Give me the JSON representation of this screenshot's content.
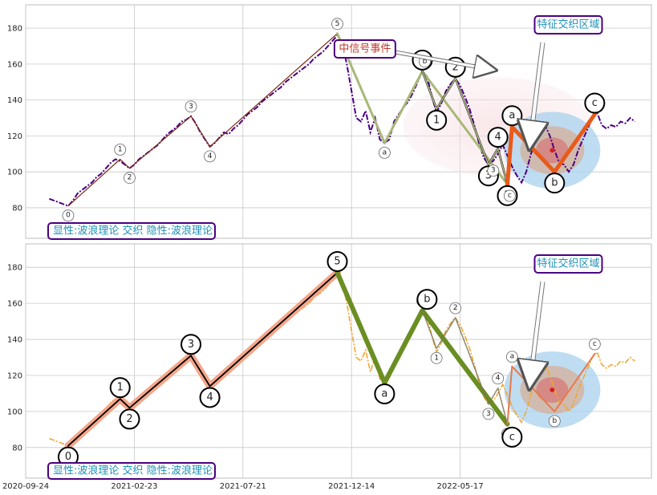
{
  "chart_data": {
    "type": "line",
    "x_dates": [
      "2020-09-24",
      "2021-02-23",
      "2021-07-21",
      "2021-12-14",
      "2022-05-17"
    ],
    "y_ticks": [
      80,
      100,
      120,
      140,
      160,
      180
    ],
    "ylim": [
      63,
      193
    ],
    "panels": [
      {
        "price_color": "#4b0082",
        "price_style": "dashdot",
        "legend_text": "显性:波浪理论 交织 隐性:波浪理论",
        "price": [
          [
            0,
            85
          ],
          [
            2,
            84
          ],
          [
            4,
            83
          ],
          [
            6,
            82
          ],
          [
            8,
            81
          ],
          [
            10,
            84
          ],
          [
            12,
            88
          ],
          [
            14,
            90
          ],
          [
            16,
            92
          ],
          [
            18,
            94
          ],
          [
            20,
            97
          ],
          [
            22,
            99
          ],
          [
            24,
            102
          ],
          [
            26,
            105
          ],
          [
            28,
            107
          ],
          [
            30,
            106
          ],
          [
            32,
            104
          ],
          [
            34,
            102
          ],
          [
            36,
            104
          ],
          [
            38,
            107
          ],
          [
            40,
            109
          ],
          [
            42,
            111
          ],
          [
            44,
            113
          ],
          [
            46,
            115
          ],
          [
            48,
            118
          ],
          [
            50,
            121
          ],
          [
            52,
            123
          ],
          [
            54,
            125
          ],
          [
            56,
            128
          ],
          [
            58,
            129
          ],
          [
            60,
            131
          ],
          [
            62,
            127
          ],
          [
            64,
            122
          ],
          [
            66,
            118
          ],
          [
            68,
            114
          ],
          [
            70,
            116
          ],
          [
            72,
            119
          ],
          [
            74,
            122
          ],
          [
            76,
            121
          ],
          [
            78,
            124
          ],
          [
            80,
            126
          ],
          [
            82,
            129
          ],
          [
            84,
            132
          ],
          [
            86,
            134
          ],
          [
            88,
            136
          ],
          [
            90,
            139
          ],
          [
            92,
            141
          ],
          [
            94,
            143
          ],
          [
            96,
            145
          ],
          [
            98,
            147
          ],
          [
            100,
            150
          ],
          [
            102,
            152
          ],
          [
            104,
            154
          ],
          [
            106,
            156
          ],
          [
            108,
            158
          ],
          [
            110,
            160
          ],
          [
            112,
            163
          ],
          [
            114,
            165
          ],
          [
            116,
            167
          ],
          [
            118,
            170
          ],
          [
            120,
            173
          ],
          [
            122,
            176
          ],
          [
            124,
            172
          ],
          [
            126,
            160
          ],
          [
            128,
            145
          ],
          [
            130,
            130
          ],
          [
            132,
            128
          ],
          [
            134,
            134
          ],
          [
            136,
            122
          ],
          [
            138,
            130
          ],
          [
            140,
            118
          ],
          [
            142,
            116
          ],
          [
            144,
            118
          ],
          [
            146,
            128
          ],
          [
            148,
            132
          ],
          [
            150,
            136
          ],
          [
            152,
            139
          ],
          [
            154,
            144
          ],
          [
            156,
            150
          ],
          [
            158,
            156
          ],
          [
            160,
            153
          ],
          [
            162,
            142
          ],
          [
            164,
            133
          ],
          [
            166,
            138
          ],
          [
            168,
            145
          ],
          [
            170,
            149
          ],
          [
            172,
            152
          ],
          [
            174,
            148
          ],
          [
            176,
            142
          ],
          [
            178,
            135
          ],
          [
            180,
            126
          ],
          [
            182,
            116
          ],
          [
            184,
            108
          ],
          [
            186,
            104
          ],
          [
            188,
            106
          ],
          [
            190,
            110
          ],
          [
            192,
            115
          ],
          [
            194,
            109
          ],
          [
            196,
            103
          ],
          [
            198,
            98
          ],
          [
            200,
            94
          ],
          [
            202,
            100
          ],
          [
            204,
            110
          ],
          [
            206,
            118
          ],
          [
            208,
            122
          ],
          [
            210,
            126
          ],
          [
            212,
            120
          ],
          [
            214,
            112
          ],
          [
            216,
            105
          ],
          [
            218,
            104
          ],
          [
            220,
            100
          ],
          [
            222,
            104
          ],
          [
            224,
            112
          ],
          [
            226,
            118
          ],
          [
            228,
            124
          ],
          [
            230,
            130
          ],
          [
            232,
            133
          ],
          [
            234,
            126
          ],
          [
            236,
            124
          ],
          [
            238,
            126
          ],
          [
            240,
            125
          ],
          [
            242,
            128
          ],
          [
            244,
            127
          ],
          [
            246,
            130
          ],
          [
            248,
            128
          ]
        ],
        "markers": [
          {
            "x": 8,
            "y": 81,
            "label": "0",
            "size": "small",
            "pos": "below"
          },
          {
            "x": 30,
            "y": 107,
            "label": "1",
            "size": "small",
            "pos": "above"
          },
          {
            "x": 34,
            "y": 102,
            "label": "2",
            "size": "small",
            "pos": "below"
          },
          {
            "x": 60,
            "y": 131,
            "label": "3",
            "size": "small",
            "pos": "above"
          },
          {
            "x": 68,
            "y": 114,
            "label": "4",
            "size": "small",
            "pos": "below"
          },
          {
            "x": 122,
            "y": 177,
            "label": "5",
            "size": "small",
            "pos": "above"
          },
          {
            "x": 142,
            "y": 116,
            "label": "a",
            "size": "small",
            "pos": "below"
          },
          {
            "x": 158,
            "y": 156,
            "label": "0",
            "size": "big",
            "pos": "above"
          },
          {
            "x": 159,
            "y": 156,
            "label": "b",
            "size": "small",
            "pos": "above"
          },
          {
            "x": 164,
            "y": 135,
            "label": "1",
            "size": "big",
            "pos": "below"
          },
          {
            "x": 172,
            "y": 152,
            "label": "2",
            "size": "big",
            "pos": "above"
          },
          {
            "x": 186,
            "y": 104,
            "label": "3",
            "size": "big",
            "pos": "below"
          },
          {
            "x": 188,
            "y": 106,
            "label": "3",
            "size": "small",
            "pos": "below"
          },
          {
            "x": 190,
            "y": 113,
            "label": "4",
            "size": "big",
            "pos": "above"
          },
          {
            "x": 194,
            "y": 93,
            "label": "5",
            "size": "big",
            "pos": "below"
          },
          {
            "x": 195,
            "y": 92,
            "label": "c",
            "size": "small",
            "pos": "below"
          },
          {
            "x": 196,
            "y": 125,
            "label": "a",
            "size": "big",
            "pos": "above"
          },
          {
            "x": 214,
            "y": 100,
            "label": "b",
            "size": "big",
            "pos": "below"
          },
          {
            "x": 231,
            "y": 132,
            "label": "c",
            "size": "big",
            "pos": "above"
          }
        ],
        "lines": [
          {
            "pts": [
              [
                8,
                81
              ],
              [
                30,
                107
              ],
              [
                34,
                102
              ],
              [
                60,
                131
              ],
              [
                68,
                114
              ],
              [
                122,
                177
              ]
            ],
            "color": "#7a2a10",
            "width": 1.2
          },
          {
            "pts": [
              [
                122,
                177
              ],
              [
                142,
                116
              ],
              [
                158,
                156
              ],
              [
                194,
                93
              ]
            ],
            "color": "#a8b878",
            "width": 3
          },
          {
            "pts": [
              [
                158,
                156
              ],
              [
                164,
                135
              ],
              [
                172,
                152
              ],
              [
                186,
                104
              ],
              [
                190,
                113
              ],
              [
                194,
                93
              ]
            ],
            "color": "#000000",
            "width": 2.5
          },
          {
            "pts": [
              [
                158,
                156
              ],
              [
                164,
                135
              ],
              [
                172,
                152
              ],
              [
                186,
                104
              ],
              [
                190,
                113
              ],
              [
                194,
                93
              ]
            ],
            "color": "#b8c090",
            "width": 1.5
          },
          {
            "pts": [
              [
                194,
                93
              ],
              [
                196,
                125
              ],
              [
                214,
                100
              ],
              [
                231,
                132
              ]
            ],
            "color": "#e85a1a",
            "width": 5
          }
        ],
        "signal_label": "中信号事件",
        "region_label": "特征交织区域"
      },
      {
        "price_color": "#f0a830",
        "price_style": "dashdot",
        "legend_text": "显性:波浪理论 交织 隐性:波浪理论",
        "markers": [
          {
            "x": 8,
            "y": 81,
            "label": "0",
            "size": "big",
            "pos": "below"
          },
          {
            "x": 30,
            "y": 107,
            "label": "1",
            "size": "big",
            "pos": "above"
          },
          {
            "x": 34,
            "y": 102,
            "label": "2",
            "size": "big",
            "pos": "below"
          },
          {
            "x": 60,
            "y": 131,
            "label": "3",
            "size": "big",
            "pos": "above"
          },
          {
            "x": 68,
            "y": 114,
            "label": "4",
            "size": "big",
            "pos": "below"
          },
          {
            "x": 122,
            "y": 177,
            "label": "5",
            "size": "big",
            "pos": "above"
          },
          {
            "x": 142,
            "y": 116,
            "label": "a",
            "size": "big",
            "pos": "below"
          },
          {
            "x": 158,
            "y": 156,
            "label": "0",
            "size": "small",
            "pos": "above"
          },
          {
            "x": 160,
            "y": 156,
            "label": "b",
            "size": "big",
            "pos": "above"
          },
          {
            "x": 164,
            "y": 135,
            "label": "1",
            "size": "small",
            "pos": "below"
          },
          {
            "x": 172,
            "y": 152,
            "label": "2",
            "size": "small",
            "pos": "above"
          },
          {
            "x": 186,
            "y": 104,
            "label": "3",
            "size": "small",
            "pos": "below"
          },
          {
            "x": 190,
            "y": 113,
            "label": "4",
            "size": "small",
            "pos": "above"
          },
          {
            "x": 194,
            "y": 93,
            "label": "5",
            "size": "small",
            "pos": "below"
          },
          {
            "x": 196,
            "y": 92,
            "label": "c",
            "size": "big",
            "pos": "below"
          },
          {
            "x": 196,
            "y": 125,
            "label": "a",
            "size": "small",
            "pos": "above"
          },
          {
            "x": 214,
            "y": 100,
            "label": "b",
            "size": "small",
            "pos": "below"
          },
          {
            "x": 231,
            "y": 132,
            "label": "c",
            "size": "small",
            "pos": "above"
          }
        ],
        "lines": [
          {
            "pts": [
              [
                8,
                81
              ],
              [
                30,
                107
              ],
              [
                34,
                102
              ],
              [
                60,
                131
              ],
              [
                68,
                114
              ],
              [
                122,
                177
              ]
            ],
            "color": "#f4a68a",
            "width": 9
          },
          {
            "pts": [
              [
                8,
                81
              ],
              [
                30,
                107
              ],
              [
                34,
                102
              ],
              [
                60,
                131
              ],
              [
                68,
                114
              ],
              [
                122,
                177
              ]
            ],
            "color": "#000000",
            "width": 1.8
          },
          {
            "pts": [
              [
                122,
                177
              ],
              [
                142,
                116
              ],
              [
                158,
                156
              ],
              [
                194,
                93
              ]
            ],
            "color": "#6b8e23",
            "width": 6
          },
          {
            "pts": [
              [
                158,
                156
              ],
              [
                164,
                135
              ],
              [
                172,
                152
              ],
              [
                186,
                104
              ],
              [
                190,
                113
              ],
              [
                194,
                93
              ]
            ],
            "color": "#000000",
            "width": 1.2
          },
          {
            "pts": [
              [
                158,
                156
              ],
              [
                164,
                135
              ],
              [
                172,
                152
              ],
              [
                186,
                104
              ],
              [
                190,
                113
              ],
              [
                194,
                93
              ]
            ],
            "color": "#f0e0a0",
            "width": 0.6
          },
          {
            "pts": [
              [
                194,
                93
              ],
              [
                196,
                125
              ],
              [
                214,
                100
              ],
              [
                231,
                132
              ]
            ],
            "color": "#e87a4a",
            "width": 2
          }
        ],
        "region_label": "特征交织区域"
      }
    ],
    "colors": {
      "label_border": "#4b0082",
      "label_text": "#1e90b8",
      "signal_text": "#c0392b"
    }
  }
}
